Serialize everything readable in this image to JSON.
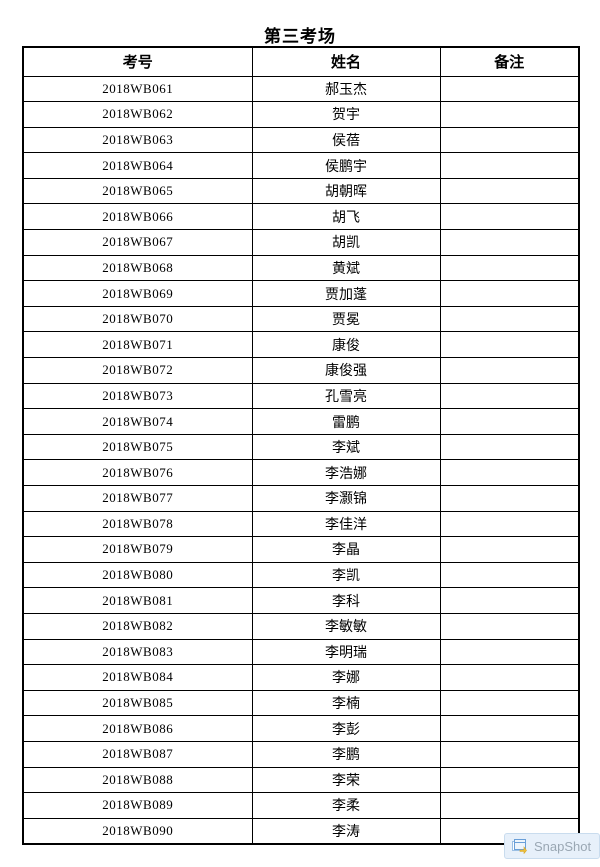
{
  "page_title": "第三考场",
  "table": {
    "headers": [
      "考号",
      "姓名",
      "备注"
    ],
    "rows": [
      {
        "exam_no": "2018WB061",
        "name": "郝玉杰",
        "note": ""
      },
      {
        "exam_no": "2018WB062",
        "name": "贺宇",
        "note": ""
      },
      {
        "exam_no": "2018WB063",
        "name": "侯蓓",
        "note": ""
      },
      {
        "exam_no": "2018WB064",
        "name": "侯鹏宇",
        "note": ""
      },
      {
        "exam_no": "2018WB065",
        "name": "胡朝晖",
        "note": ""
      },
      {
        "exam_no": "2018WB066",
        "name": "胡飞",
        "note": ""
      },
      {
        "exam_no": "2018WB067",
        "name": "胡凯",
        "note": ""
      },
      {
        "exam_no": "2018WB068",
        "name": "黄斌",
        "note": ""
      },
      {
        "exam_no": "2018WB069",
        "name": "贾加蓬",
        "note": ""
      },
      {
        "exam_no": "2018WB070",
        "name": "贾冕",
        "note": ""
      },
      {
        "exam_no": "2018WB071",
        "name": "康俊",
        "note": ""
      },
      {
        "exam_no": "2018WB072",
        "name": "康俊强",
        "note": ""
      },
      {
        "exam_no": "2018WB073",
        "name": "孔雪亮",
        "note": ""
      },
      {
        "exam_no": "2018WB074",
        "name": "雷鹏",
        "note": ""
      },
      {
        "exam_no": "2018WB075",
        "name": "李斌",
        "note": ""
      },
      {
        "exam_no": "2018WB076",
        "name": "李浩娜",
        "note": ""
      },
      {
        "exam_no": "2018WB077",
        "name": "李灏锦",
        "note": ""
      },
      {
        "exam_no": "2018WB078",
        "name": "李佳洋",
        "note": ""
      },
      {
        "exam_no": "2018WB079",
        "name": "李晶",
        "note": ""
      },
      {
        "exam_no": "2018WB080",
        "name": "李凯",
        "note": ""
      },
      {
        "exam_no": "2018WB081",
        "name": "李科",
        "note": ""
      },
      {
        "exam_no": "2018WB082",
        "name": "李敏敏",
        "note": ""
      },
      {
        "exam_no": "2018WB083",
        "name": "李明瑞",
        "note": ""
      },
      {
        "exam_no": "2018WB084",
        "name": "李娜",
        "note": ""
      },
      {
        "exam_no": "2018WB085",
        "name": "李楠",
        "note": ""
      },
      {
        "exam_no": "2018WB086",
        "name": "李彭",
        "note": ""
      },
      {
        "exam_no": "2018WB087",
        "name": "李鹏",
        "note": ""
      },
      {
        "exam_no": "2018WB088",
        "name": "李荣",
        "note": ""
      },
      {
        "exam_no": "2018WB089",
        "name": "李柔",
        "note": ""
      },
      {
        "exam_no": "2018WB090",
        "name": "李涛",
        "note": ""
      }
    ]
  },
  "snapshot": {
    "label": "SnapShot"
  },
  "colors": {
    "table_border": "#000000",
    "text": "#000000",
    "badge_bg": "#e7f0fa",
    "badge_border": "#c9dcee",
    "badge_text": "#9aa7b3",
    "badge_icon_blue": "#6a9fd8",
    "badge_icon_yellow": "#f0c23c"
  }
}
